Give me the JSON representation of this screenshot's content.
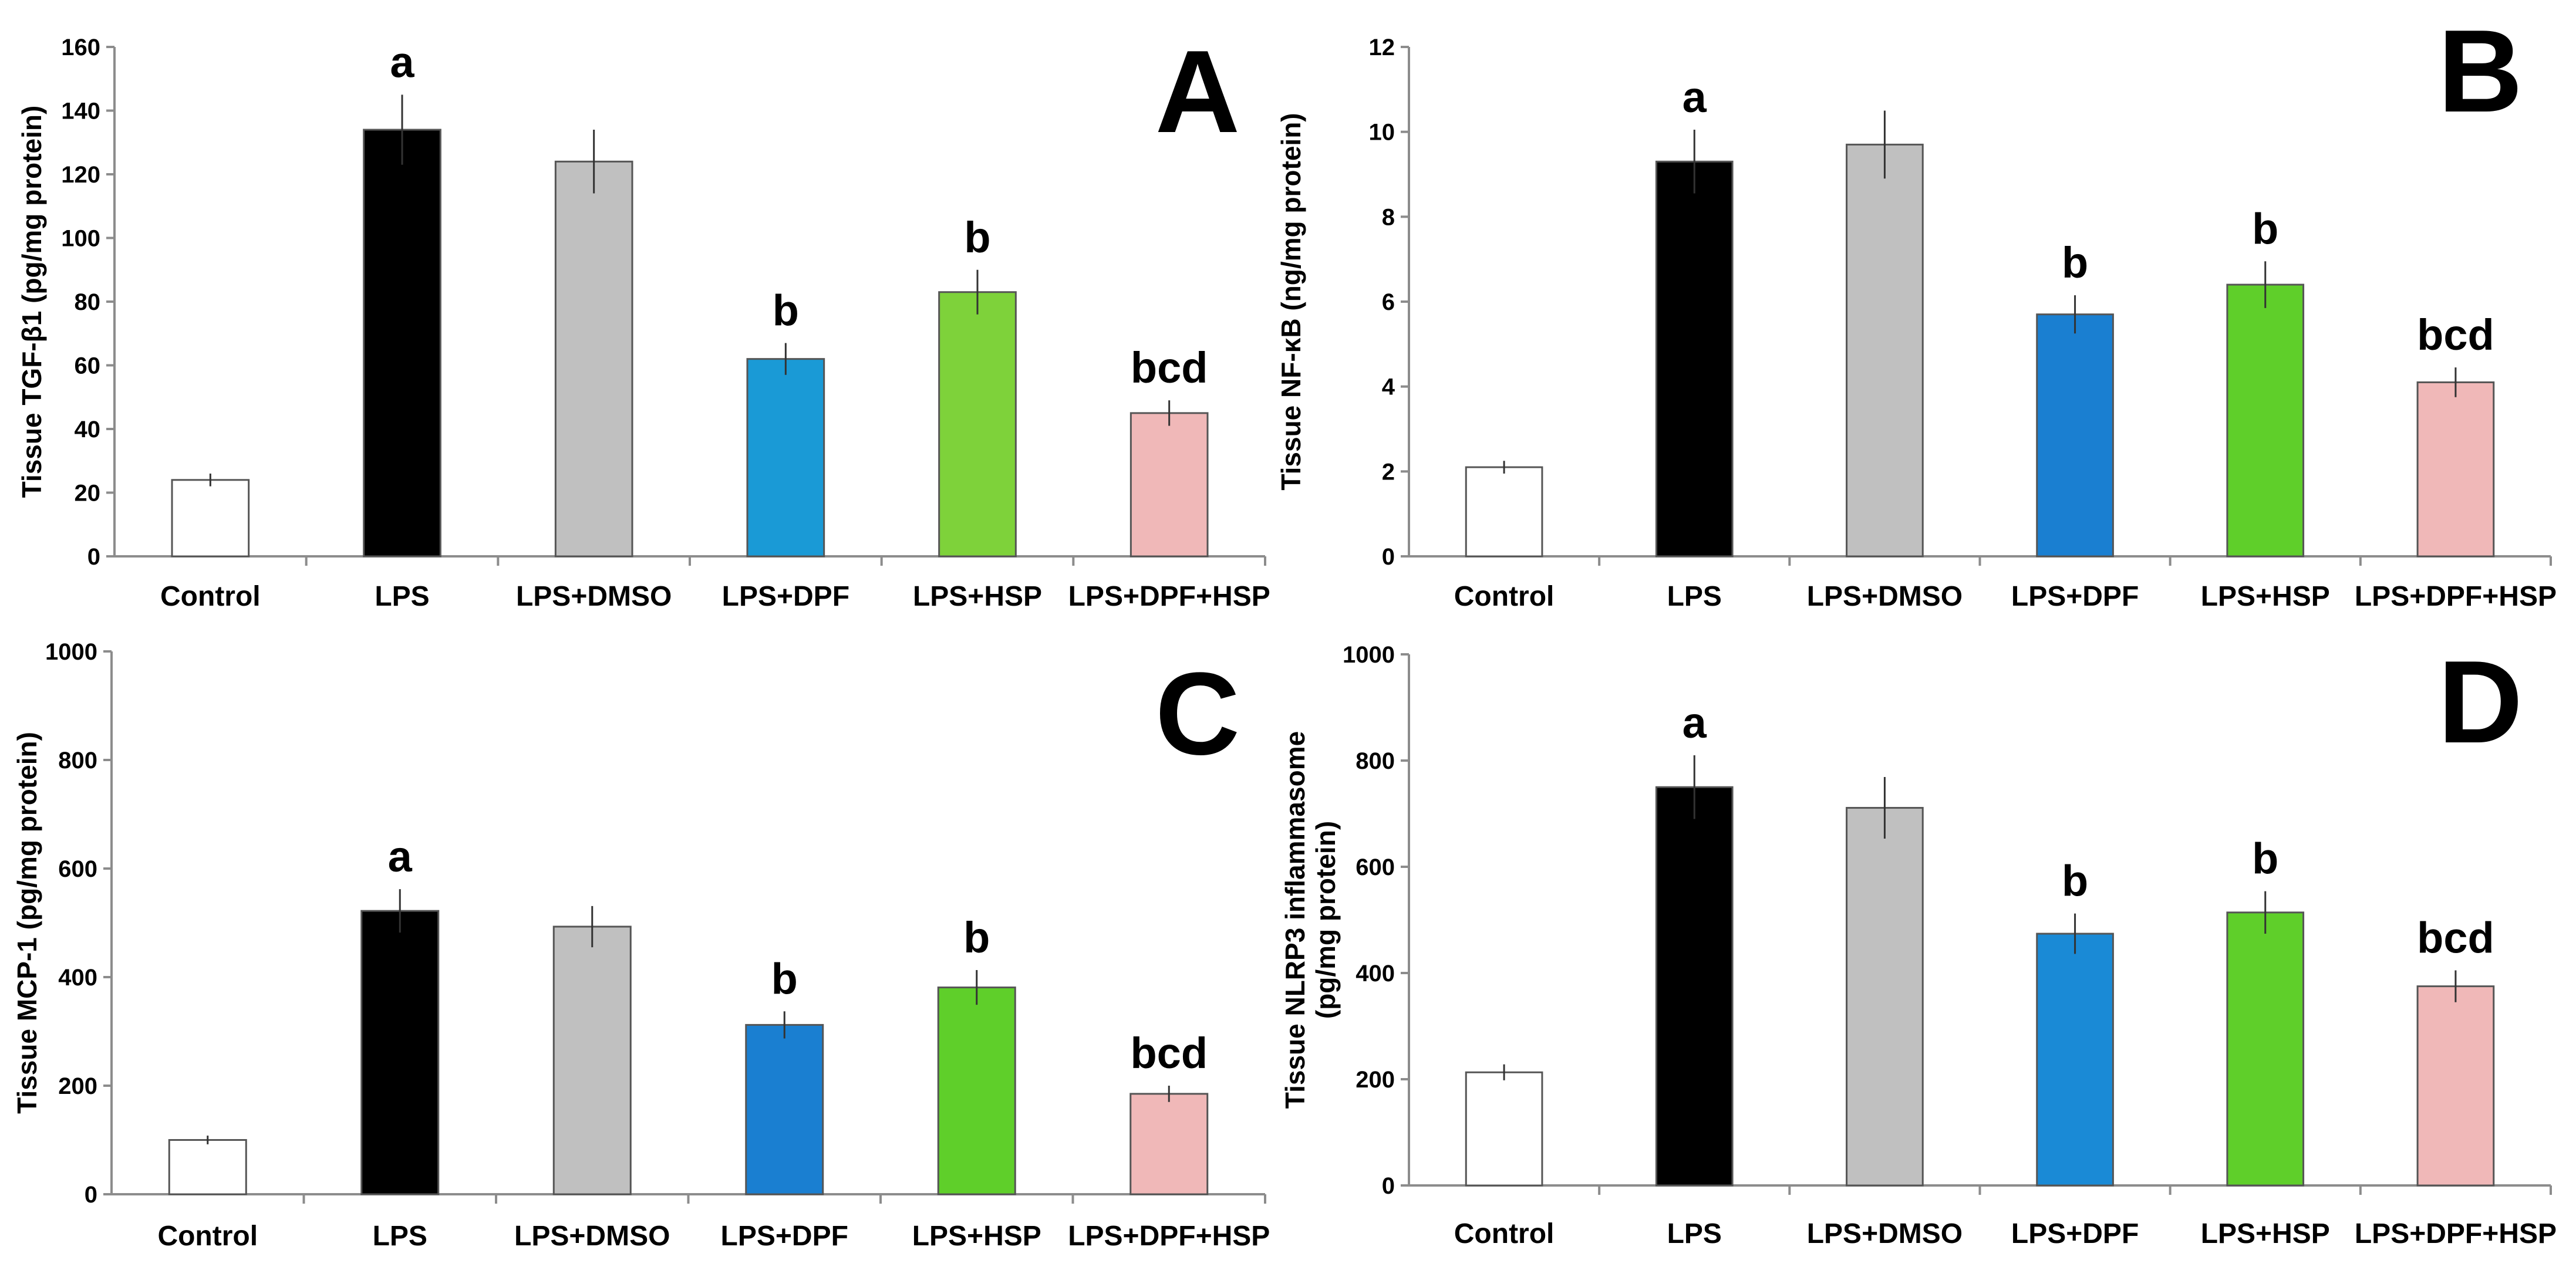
{
  "chart_data": [
    {
      "type": "bar",
      "panel": "A",
      "ylabel": "Tissue TGF-β1 (pg/mg protein)",
      "ylim": [
        0,
        160
      ],
      "yticks": [
        0,
        20,
        40,
        60,
        80,
        100,
        120,
        140,
        160
      ],
      "categories": [
        "Control",
        "LPS",
        "LPS+DMSO",
        "LPS+DPF",
        "LPS+HSP",
        "LPS+DPF+HSP"
      ],
      "values": [
        24,
        134,
        124,
        62,
        83,
        45
      ],
      "errors": [
        2,
        11,
        10,
        5,
        7,
        4
      ],
      "labels": [
        "",
        "a",
        "",
        "b",
        "b",
        "bcd"
      ],
      "colors": [
        "#ffffff",
        "#000000",
        "#c0c0c0",
        "#1a9ad6",
        "#7ed23a",
        "#f0b8b8"
      ]
    },
    {
      "type": "bar",
      "panel": "B",
      "ylabel": "Tissue NF-κB (ng/mg protein)",
      "ylim": [
        0,
        12
      ],
      "yticks": [
        0,
        2,
        4,
        6,
        8,
        10,
        12
      ],
      "categories": [
        "Control",
        "LPS",
        "LPS+DMSO",
        "LPS+DPF",
        "LPS+HSP",
        "LPS+DPF+HSP"
      ],
      "values": [
        2.1,
        9.3,
        9.7,
        5.7,
        6.4,
        4.1
      ],
      "errors": [
        0.15,
        0.75,
        0.8,
        0.45,
        0.55,
        0.35
      ],
      "labels": [
        "",
        "a",
        "",
        "b",
        "b",
        "bcd"
      ],
      "colors": [
        "#ffffff",
        "#000000",
        "#c0c0c0",
        "#1a7fd1",
        "#5fcf2a",
        "#f0b8b8"
      ]
    },
    {
      "type": "bar",
      "panel": "C",
      "ylabel": "Tissue MCP-1 (pg/mg protein)",
      "ylim": [
        0,
        1000
      ],
      "yticks": [
        0,
        200,
        400,
        600,
        800,
        1000
      ],
      "categories": [
        "Control",
        "LPS",
        "LPS+DMSO",
        "LPS+DPF",
        "LPS+HSP",
        "LPS+DPF+HSP"
      ],
      "values": [
        100,
        522,
        493,
        312,
        381,
        185
      ],
      "errors": [
        8,
        40,
        38,
        25,
        32,
        15
      ],
      "labels": [
        "",
        "a",
        "",
        "b",
        "b",
        "bcd"
      ],
      "colors": [
        "#ffffff",
        "#000000",
        "#c0c0c0",
        "#1a7fd1",
        "#5fcf2a",
        "#f0b8b8"
      ]
    },
    {
      "type": "bar",
      "panel": "D",
      "ylabel": "Tissue NLRP3 inflammasome",
      "ylabel2": "(pg/mg protein)",
      "ylim": [
        0,
        1000
      ],
      "yticks": [
        0,
        200,
        400,
        600,
        800,
        1000
      ],
      "categories": [
        "Control",
        "LPS",
        "LPS+DMSO",
        "LPS+DPF",
        "LPS+HSP",
        "LPS+DPF+HSP"
      ],
      "values": [
        213,
        750,
        711,
        474,
        514,
        375
      ],
      "errors": [
        15,
        60,
        58,
        38,
        40,
        30
      ],
      "labels": [
        "",
        "a",
        "",
        "b",
        "b",
        "bcd"
      ],
      "colors": [
        "#ffffff",
        "#000000",
        "#c0c0c0",
        "#1a8ad6",
        "#5fcf2a",
        "#f0b8b8"
      ]
    }
  ]
}
